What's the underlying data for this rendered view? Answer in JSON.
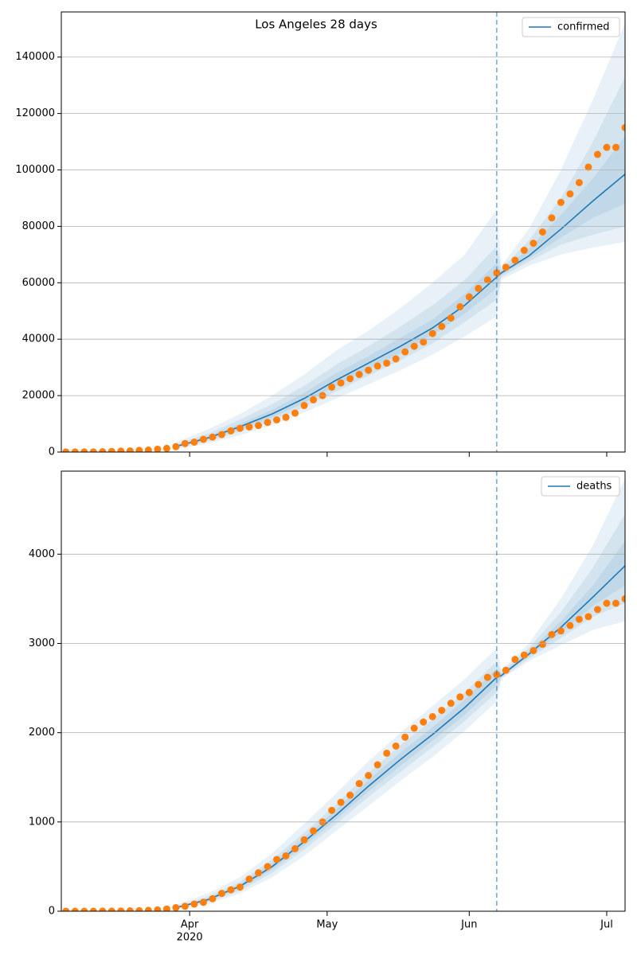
{
  "chart_data": [
    {
      "type": "line",
      "title": "Los Angeles 28 days",
      "xlim": [
        "2020-03-04",
        "2020-07-05"
      ],
      "xticks": [
        {
          "value": "2020-04-01"
        },
        {
          "value": "2020-05-01"
        },
        {
          "value": "2020-06-01"
        },
        {
          "value": "2020-07-01"
        }
      ],
      "ylim": [
        0,
        156000
      ],
      "yticks": [
        0,
        20000,
        40000,
        60000,
        80000,
        100000,
        120000,
        140000
      ],
      "grid": true,
      "legend": "upper right",
      "vline": "2020-06-07",
      "series": [
        {
          "name": "confirmed",
          "color": "#1f77b4",
          "x": [
            "2020-03-29",
            "2020-04-05",
            "2020-04-12",
            "2020-04-19",
            "2020-04-26",
            "2020-05-03",
            "2020-05-10",
            "2020-05-17",
            "2020-05-24",
            "2020-05-31",
            "2020-06-07",
            "2020-06-08",
            "2020-06-14",
            "2020-06-21",
            "2020-06-28",
            "2020-07-05"
          ],
          "values": [
            2000,
            5000,
            9000,
            13500,
            19000,
            25500,
            31500,
            37500,
            44000,
            52000,
            62000,
            63500,
            69500,
            79000,
            89000,
            98500
          ],
          "bands": [
            {
              "lower": [
                1000,
                3000,
                6000,
                9500,
                14000,
                19000,
                24000,
                29000,
                34500,
                41000,
                48000,
                61000,
                66000,
                70000,
                72500,
                74500
              ],
              "upper": [
                3500,
                8000,
                13500,
                20000,
                27500,
                36000,
                43000,
                51000,
                60000,
                70000,
                86000,
                66000,
                79000,
                100000,
                125000,
                152000
              ]
            },
            {
              "lower": [
                1400,
                3800,
                7200,
                11000,
                16000,
                21500,
                27000,
                32500,
                38500,
                46000,
                54000,
                62000,
                67500,
                73500,
                77000,
                80000
              ],
              "upper": [
                2800,
                6500,
                11500,
                17000,
                23500,
                31000,
                37500,
                44500,
                52000,
                61000,
                73000,
                65000,
                75000,
                90000,
                110000,
                133000
              ]
            },
            {
              "lower": [
                1700,
                4400,
                8000,
                12300,
                17500,
                23500,
                29300,
                35000,
                41500,
                49000,
                58000,
                62800,
                68500,
                76000,
                83000,
                88000
              ],
              "upper": [
                2300,
                5600,
                10000,
                15000,
                21000,
                28000,
                34000,
                40500,
                47000,
                56000,
                67000,
                64300,
                72000,
                84000,
                97000,
                112000
              ]
            }
          ]
        },
        {
          "color": "#ff7f0e",
          "x": [
            "2020-03-05",
            "2020-03-07",
            "2020-03-09",
            "2020-03-11",
            "2020-03-13",
            "2020-03-15",
            "2020-03-17",
            "2020-03-19",
            "2020-03-21",
            "2020-03-23",
            "2020-03-25",
            "2020-03-27",
            "2020-03-29",
            "2020-03-31",
            "2020-04-02",
            "2020-04-04",
            "2020-04-06",
            "2020-04-08",
            "2020-04-10",
            "2020-04-12",
            "2020-04-14",
            "2020-04-16",
            "2020-04-18",
            "2020-04-20",
            "2020-04-22",
            "2020-04-24",
            "2020-04-26",
            "2020-04-28",
            "2020-04-30",
            "2020-05-02",
            "2020-05-04",
            "2020-05-06",
            "2020-05-08",
            "2020-05-10",
            "2020-05-12",
            "2020-05-14",
            "2020-05-16",
            "2020-05-18",
            "2020-05-20",
            "2020-05-22",
            "2020-05-24",
            "2020-05-26",
            "2020-05-28",
            "2020-05-30",
            "2020-06-01",
            "2020-06-03",
            "2020-06-05",
            "2020-06-07",
            "2020-06-09",
            "2020-06-11",
            "2020-06-13",
            "2020-06-15",
            "2020-06-17",
            "2020-06-19",
            "2020-06-21",
            "2020-06-23",
            "2020-06-25",
            "2020-06-27",
            "2020-06-29",
            "2020-07-01",
            "2020-07-03",
            "2020-07-05"
          ],
          "values": [
            30,
            30,
            40,
            50,
            100,
            200,
            300,
            400,
            600,
            700,
            1000,
            1300,
            1900,
            3000,
            3500,
            4500,
            5300,
            6200,
            7500,
            8400,
            8900,
            9400,
            10500,
            11400,
            12300,
            13800,
            16500,
            18500,
            20000,
            23000,
            24500,
            26000,
            27500,
            29000,
            30500,
            31500,
            33000,
            35500,
            37500,
            39000,
            42000,
            44500,
            47500,
            51500,
            55000,
            58000,
            61000,
            63500,
            65500,
            68000,
            71500,
            74000,
            78000,
            83000,
            88500,
            91500,
            95500,
            101000,
            105500,
            108000,
            108000,
            115000
          ]
        }
      ]
    },
    {
      "type": "line",
      "xlim": [
        "2020-03-04",
        "2020-07-05"
      ],
      "xticks": [
        {
          "value": "2020-04-01",
          "label": "Apr",
          "sublabel": "2020"
        },
        {
          "value": "2020-05-01",
          "label": "May"
        },
        {
          "value": "2020-06-01",
          "label": "Jun"
        },
        {
          "value": "2020-07-01",
          "label": "Jul"
        }
      ],
      "ylim": [
        0,
        4930
      ],
      "yticks": [
        0,
        1000,
        2000,
        3000,
        4000
      ],
      "grid": true,
      "legend": "upper right",
      "vline": "2020-06-07",
      "series": [
        {
          "name": "deaths",
          "color": "#1f77b4",
          "x": [
            "2020-03-29",
            "2020-04-05",
            "2020-04-12",
            "2020-04-19",
            "2020-04-26",
            "2020-05-03",
            "2020-05-10",
            "2020-05-17",
            "2020-05-24",
            "2020-05-31",
            "2020-06-07",
            "2020-06-08",
            "2020-06-14",
            "2020-06-21",
            "2020-06-28",
            "2020-07-05"
          ],
          "values": [
            40,
            130,
            280,
            500,
            780,
            1080,
            1400,
            1700,
            1980,
            2280,
            2620,
            2640,
            2880,
            3180,
            3520,
            3870
          ],
          "bands": [
            {
              "lower": [
                20,
                80,
                200,
                380,
                620,
                900,
                1180,
                1460,
                1730,
                2020,
                2350,
                2600,
                2800,
                2980,
                3150,
                3250
              ],
              "upper": [
                70,
                200,
                380,
                650,
                980,
                1320,
                1680,
                2000,
                2300,
                2600,
                2950,
                2700,
                3000,
                3500,
                4100,
                4850
              ]
            },
            {
              "lower": [
                28,
                100,
                230,
                430,
                690,
                980,
                1280,
                1560,
                1840,
                2130,
                2450,
                2610,
                2830,
                3060,
                3300,
                3450
              ],
              "upper": [
                55,
                165,
                330,
                580,
                880,
                1200,
                1550,
                1860,
                2150,
                2450,
                2800,
                2680,
                2950,
                3350,
                3850,
                4450
              ]
            },
            {
              "lower": [
                34,
                115,
                255,
                465,
                735,
                1030,
                1340,
                1630,
                1910,
                2200,
                2530,
                2625,
                2855,
                3120,
                3420,
                3650
              ],
              "upper": [
                46,
                145,
                305,
                540,
                830,
                1140,
                1470,
                1780,
                2060,
                2370,
                2720,
                2660,
                2910,
                3250,
                3650,
                4150
              ]
            }
          ]
        },
        {
          "color": "#ff7f0e",
          "x": [
            "2020-03-05",
            "2020-03-07",
            "2020-03-09",
            "2020-03-11",
            "2020-03-13",
            "2020-03-15",
            "2020-03-17",
            "2020-03-19",
            "2020-03-21",
            "2020-03-23",
            "2020-03-25",
            "2020-03-27",
            "2020-03-29",
            "2020-03-31",
            "2020-04-02",
            "2020-04-04",
            "2020-04-06",
            "2020-04-08",
            "2020-04-10",
            "2020-04-12",
            "2020-04-14",
            "2020-04-16",
            "2020-04-18",
            "2020-04-20",
            "2020-04-22",
            "2020-04-24",
            "2020-04-26",
            "2020-04-28",
            "2020-04-30",
            "2020-05-02",
            "2020-05-04",
            "2020-05-06",
            "2020-05-08",
            "2020-05-10",
            "2020-05-12",
            "2020-05-14",
            "2020-05-16",
            "2020-05-18",
            "2020-05-20",
            "2020-05-22",
            "2020-05-24",
            "2020-05-26",
            "2020-05-28",
            "2020-05-30",
            "2020-06-01",
            "2020-06-03",
            "2020-06-05",
            "2020-06-07",
            "2020-06-09",
            "2020-06-11",
            "2020-06-13",
            "2020-06-15",
            "2020-06-17",
            "2020-06-19",
            "2020-06-21",
            "2020-06-23",
            "2020-06-25",
            "2020-06-27",
            "2020-06-29",
            "2020-07-01",
            "2020-07-03",
            "2020-07-05"
          ],
          "values": [
            0,
            0,
            0,
            0,
            1,
            1,
            2,
            4,
            6,
            10,
            15,
            25,
            40,
            55,
            80,
            100,
            140,
            200,
            240,
            270,
            360,
            430,
            500,
            580,
            620,
            700,
            800,
            900,
            1000,
            1130,
            1220,
            1300,
            1430,
            1520,
            1640,
            1770,
            1850,
            1950,
            2050,
            2120,
            2180,
            2250,
            2330,
            2400,
            2450,
            2540,
            2620,
            2650,
            2700,
            2820,
            2870,
            2920,
            2990,
            3100,
            3140,
            3200,
            3270,
            3300,
            3380,
            3450,
            3450,
            3500
          ]
        }
      ]
    }
  ]
}
